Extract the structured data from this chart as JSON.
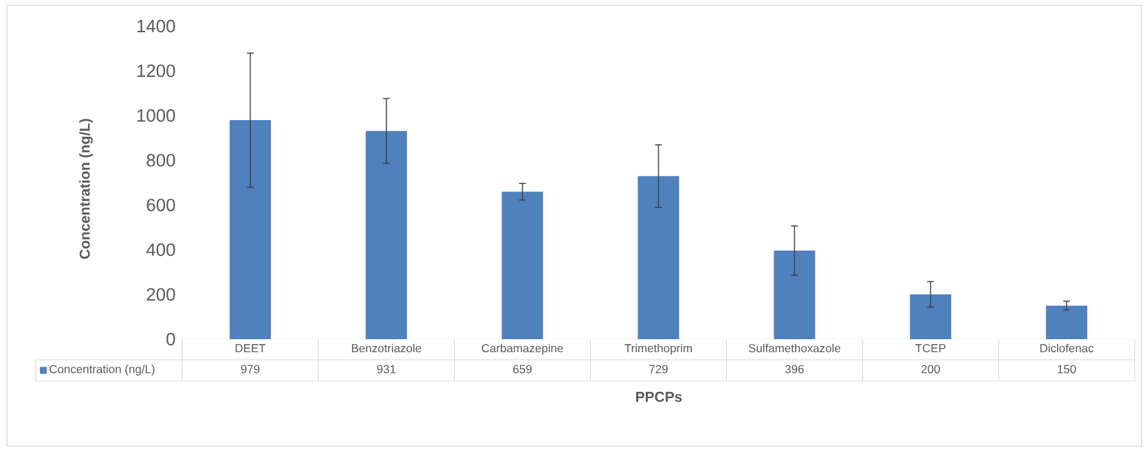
{
  "chart_data": {
    "type": "bar",
    "ylabel": "Concentration (ng/L)",
    "xlabel": "PPCPs",
    "categories": [
      "DEET",
      "Benzotriazole",
      "Carbamazepine",
      "Trimethoprim",
      "Sulfamethoxazole",
      "TCEP",
      "Diclofenac"
    ],
    "series": [
      {
        "name": "Concentration (ng/L)",
        "color": "#4f81bd",
        "values": [
          979,
          931,
          659,
          729,
          396,
          200,
          150
        ],
        "errors": [
          300,
          145,
          37,
          140,
          110,
          57,
          20
        ],
        "value_labels": [
          "979",
          "931",
          "659",
          "729",
          "396",
          "200",
          "150"
        ]
      }
    ],
    "ylim": [
      0,
      1400
    ],
    "yticks": [
      0,
      200,
      400,
      600,
      800,
      1000,
      1200,
      1400
    ],
    "legend": "bottom"
  }
}
